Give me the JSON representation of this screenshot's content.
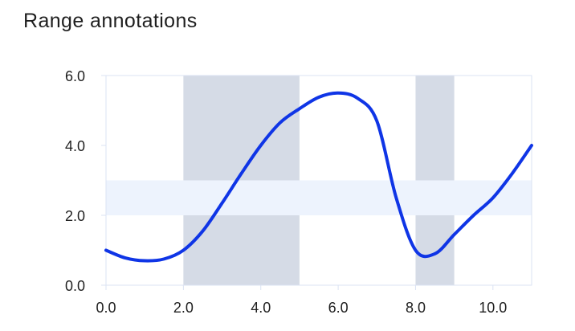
{
  "title": "Range annotations",
  "colors": {
    "line": "#0f35e6",
    "x_band": "#d5dbe6",
    "y_band": "#edf3fd",
    "axis": "#dbe3f3",
    "text": "#1f1f1f"
  },
  "chart_data": {
    "type": "line",
    "title": "Range annotations",
    "xlabel": "",
    "ylabel": "",
    "xlim": [
      0,
      11
    ],
    "ylim": [
      0,
      6
    ],
    "x_ticks": [
      "0.0",
      "2.0",
      "4.0",
      "6.0",
      "8.0",
      "10.0"
    ],
    "y_ticks": [
      "0.0",
      "2.0",
      "4.0",
      "6.0"
    ],
    "grid": false,
    "x_ranges": [
      [
        2,
        5
      ],
      [
        8,
        9
      ]
    ],
    "y_ranges": [
      [
        2,
        3
      ]
    ],
    "series": [
      {
        "x": [
          0,
          0.5,
          1,
          1.5,
          2,
          2.5,
          3,
          3.5,
          4,
          4.5,
          5,
          5.5,
          6,
          6.5,
          7,
          7.5,
          8,
          8.5,
          9,
          9.5,
          10,
          10.5,
          11
        ],
        "values": [
          1.0,
          0.78,
          0.7,
          0.75,
          1.0,
          1.55,
          2.35,
          3.2,
          4.0,
          4.65,
          5.05,
          5.38,
          5.5,
          5.35,
          4.7,
          2.5,
          1.0,
          0.9,
          1.45,
          2.0,
          2.5,
          3.2,
          4.0
        ]
      }
    ]
  }
}
